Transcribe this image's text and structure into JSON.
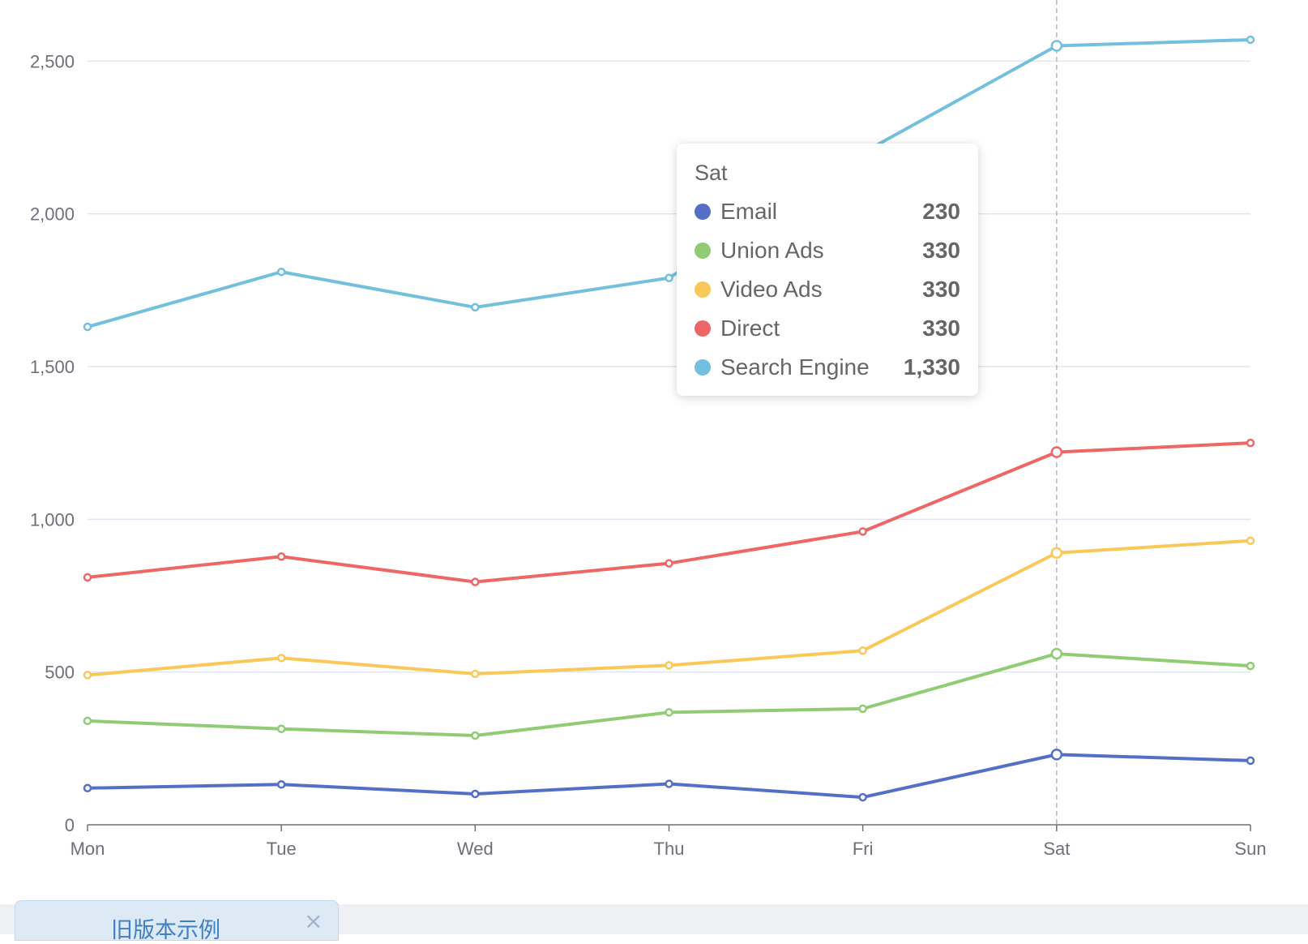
{
  "chart_data": {
    "type": "line",
    "categories": [
      "Mon",
      "Tue",
      "Wed",
      "Thu",
      "Fri",
      "Sat",
      "Sun"
    ],
    "y_ticks": [
      "0",
      "500",
      "1,000",
      "1,500",
      "2,000",
      "2,500"
    ],
    "ylim": [
      0,
      2700
    ],
    "grid": true,
    "series": [
      {
        "name": "Email",
        "color": "#5470c6",
        "values": [
          120,
          132,
          101,
          134,
          90,
          230,
          210
        ]
      },
      {
        "name": "Union Ads",
        "color": "#91cc75",
        "values": [
          340,
          314,
          292,
          368,
          380,
          560,
          520
        ]
      },
      {
        "name": "Video Ads",
        "color": "#fac858",
        "values": [
          490,
          546,
          494,
          522,
          570,
          890,
          930
        ]
      },
      {
        "name": "Direct",
        "color": "#ee6666",
        "values": [
          810,
          878,
          795,
          856,
          960,
          1220,
          1250
        ]
      },
      {
        "name": "Search Engine",
        "color": "#73c0de",
        "values": [
          1630,
          1810,
          1694,
          1790,
          2200,
          2550,
          2570
        ]
      }
    ],
    "highlight_category": "Sat"
  },
  "tooltip": {
    "title": "Sat",
    "rows": [
      {
        "name": "Email",
        "value": "230",
        "color": "#5470c6"
      },
      {
        "name": "Union Ads",
        "value": "330",
        "color": "#91cc75"
      },
      {
        "name": "Video Ads",
        "value": "330",
        "color": "#fac858"
      },
      {
        "name": "Direct",
        "value": "330",
        "color": "#ee6666"
      },
      {
        "name": "Search Engine",
        "value": "1,330",
        "color": "#73c0de"
      }
    ]
  },
  "bottom_tab": {
    "label": "旧版本示例",
    "close_icon": "×"
  }
}
